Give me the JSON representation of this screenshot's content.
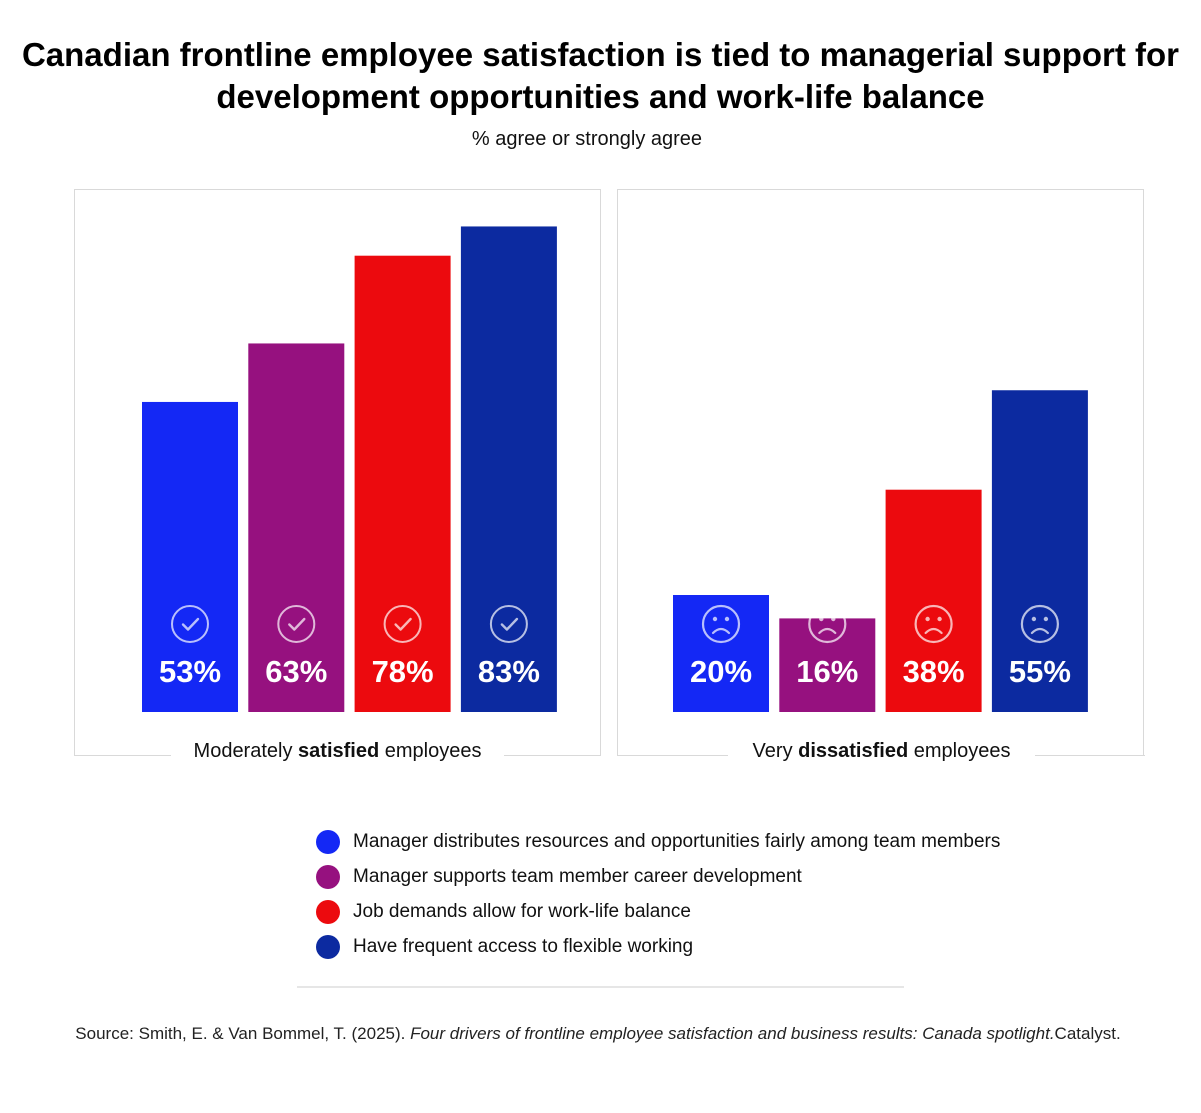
{
  "title": "Canadian frontline employee satisfaction is tied to managerial support for development opportunities and work-life balance",
  "subtitle": "% agree or strongly agree",
  "colors": {
    "blue": "#1428f5",
    "purple": "#96117f",
    "red": "#ec0a0e",
    "navy": "#0c2aa0",
    "panel_border": "#d9d9d9"
  },
  "chart_data": [
    {
      "type": "bar",
      "panel_label_prefix": "Moderately ",
      "panel_label_bold": "satisfied",
      "panel_label_suffix": " employees",
      "icon": "check-circle-icon",
      "categories": [
        "Manager distributes resources and opportunities fairly among team members",
        "Manager supports team member career development",
        "Job demands allow for work-life balance",
        "Have frequent access to flexible working"
      ],
      "values": [
        53,
        63,
        78,
        83
      ],
      "labels": [
        "53%",
        "63%",
        "78%",
        "83%"
      ],
      "ylim": [
        0,
        100
      ]
    },
    {
      "type": "bar",
      "panel_label_prefix": "Very ",
      "panel_label_bold": "dissatisfied",
      "panel_label_suffix": " employees",
      "icon": "sad-face-icon",
      "categories": [
        "Manager distributes resources and opportunities fairly among team members",
        "Manager supports team member career development",
        "Job demands allow for work-life balance",
        "Have frequent access to flexible working"
      ],
      "values": [
        20,
        16,
        38,
        55
      ],
      "labels": [
        "20%",
        "16%",
        "38%",
        "55%"
      ],
      "ylim": [
        0,
        100
      ]
    }
  ],
  "legend": [
    {
      "label": "Manager distributes resources and opportunities fairly among team members",
      "color": "#1428f5"
    },
    {
      "label": "Manager supports team member career development",
      "color": "#96117f"
    },
    {
      "label": "Job demands allow for work-life balance",
      "color": "#ec0a0e"
    },
    {
      "label": "Have frequent access to flexible working",
      "color": "#0c2aa0"
    }
  ],
  "source": {
    "prefix": "Source: Smith, E. & Van Bommel, T. (2025). ",
    "italic": "Four drivers of frontline employee satisfaction and business results: Canada spotlight.",
    "suffix": "Catalyst."
  }
}
